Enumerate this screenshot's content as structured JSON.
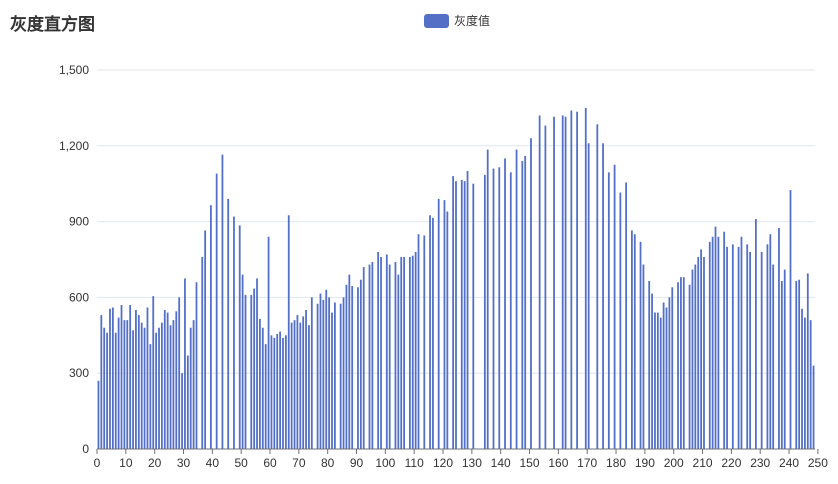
{
  "title": "灰度直方图",
  "legend": {
    "label": "灰度值",
    "color": "#5470c6"
  },
  "chart_data": {
    "type": "bar",
    "title": "灰度直方图",
    "xlabel": "",
    "ylabel": "",
    "ylim": [
      0,
      1500
    ],
    "y_ticks": [
      "0",
      "300",
      "600",
      "900",
      "1,200",
      "1,500"
    ],
    "x_ticks": [
      "0",
      "10",
      "20",
      "30",
      "40",
      "50",
      "60",
      "70",
      "80",
      "90",
      "100",
      "110",
      "120",
      "130",
      "140",
      "150",
      "160",
      "170",
      "180",
      "190",
      "200",
      "210",
      "220",
      "230",
      "240",
      "250"
    ],
    "grid": true,
    "legend_position": "top-center",
    "series": [
      {
        "name": "灰度值",
        "color": "#5470c6",
        "values": [
          270,
          530,
          480,
          460,
          555,
          560,
          460,
          520,
          570,
          510,
          510,
          570,
          470,
          550,
          530,
          500,
          480,
          560,
          415,
          605,
          460,
          480,
          500,
          550,
          540,
          490,
          510,
          545,
          600,
          300,
          675,
          370,
          480,
          510,
          660,
          0,
          760,
          865,
          0,
          965,
          0,
          1090,
          0,
          1165,
          0,
          990,
          0,
          920,
          0,
          885,
          690,
          610,
          0,
          610,
          635,
          675,
          515,
          480,
          415,
          840,
          450,
          440,
          455,
          465,
          440,
          450,
          925,
          500,
          510,
          530,
          500,
          525,
          550,
          490,
          600,
          0,
          575,
          615,
          590,
          630,
          600,
          540,
          580,
          0,
          575,
          600,
          650,
          690,
          645,
          0,
          640,
          670,
          720,
          0,
          730,
          740,
          0,
          780,
          760,
          0,
          770,
          730,
          0,
          740,
          690,
          760,
          760,
          0,
          760,
          765,
          780,
          850,
          0,
          845,
          0,
          925,
          915,
          0,
          990,
          0,
          985,
          940,
          0,
          1080,
          1060,
          0,
          1065,
          1060,
          1100,
          0,
          1050,
          0,
          0,
          0,
          1085,
          1185,
          0,
          1110,
          0,
          1115,
          0,
          1150,
          0,
          1095,
          0,
          1185,
          0,
          1140,
          1160,
          0,
          1230,
          0,
          0,
          1320,
          0,
          1280,
          0,
          0,
          1315,
          0,
          0,
          1320,
          1315,
          0,
          1340,
          0,
          1335,
          0,
          0,
          1350,
          1210,
          0,
          0,
          1285,
          0,
          1210,
          0,
          1095,
          0,
          1125,
          0,
          1015,
          0,
          1055,
          0,
          865,
          850,
          0,
          820,
          730,
          0,
          665,
          615,
          540,
          540,
          520,
          580,
          560,
          600,
          640,
          0,
          660,
          680,
          680,
          0,
          650,
          710,
          730,
          760,
          790,
          760,
          0,
          820,
          840,
          880,
          840,
          0,
          860,
          800,
          0,
          810,
          0,
          800,
          840,
          0,
          810,
          780,
          0,
          910,
          0,
          780,
          0,
          810,
          850,
          730,
          0,
          875,
          665,
          710,
          0,
          1025,
          0,
          665,
          670,
          555,
          520,
          695,
          510,
          330
        ]
      }
    ]
  }
}
